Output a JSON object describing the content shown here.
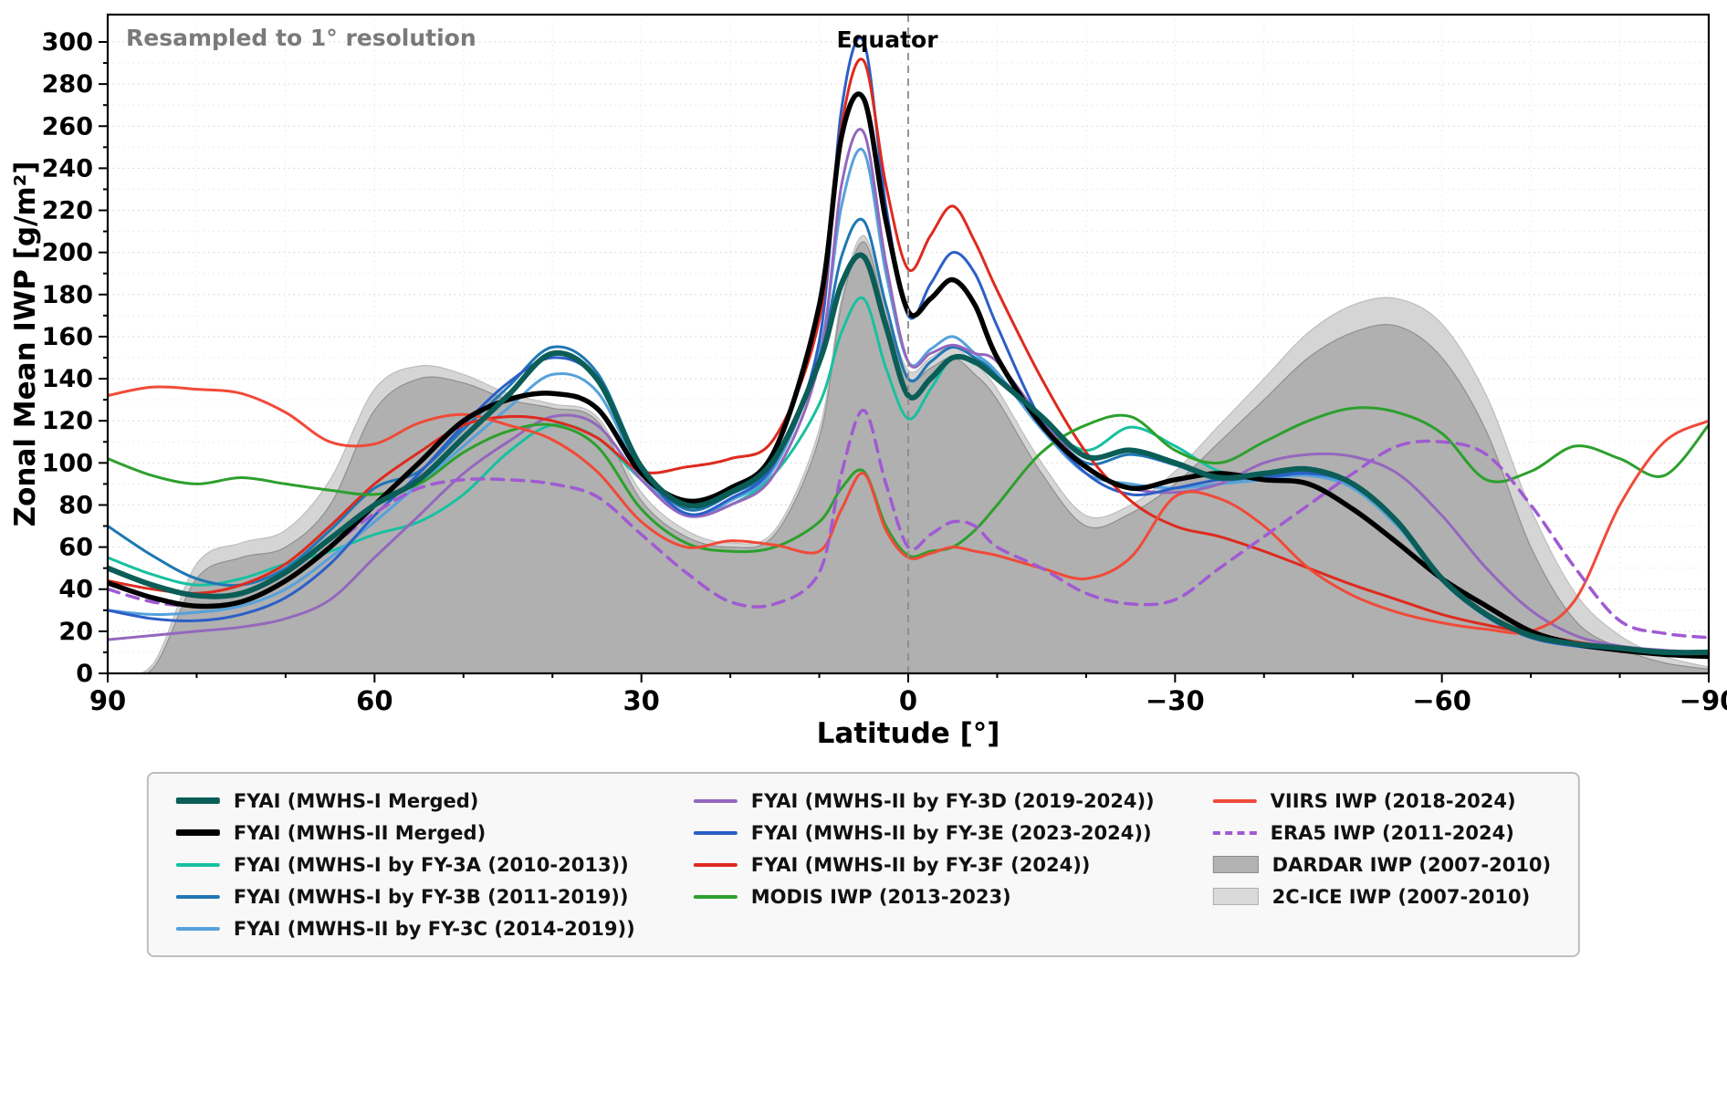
{
  "chart_data": {
    "type": "line",
    "title": "",
    "annotation": "Resampled to 1° resolution",
    "equator_label": "Equator",
    "xlabel": "Latitude [°]",
    "ylabel": "Zonal Mean IWP [g/m²]",
    "xlim": [
      90,
      -90
    ],
    "ylim": [
      0,
      313
    ],
    "x_axis_reversed": true,
    "grid": "dotted",
    "x_ticks": [
      90,
      60,
      30,
      0,
      -30,
      -60,
      -90
    ],
    "x_tick_labels": [
      "90",
      "60",
      "30",
      "0",
      "−30",
      "−60",
      "−90"
    ],
    "y_ticks": [
      0,
      20,
      40,
      60,
      80,
      100,
      120,
      140,
      160,
      180,
      200,
      220,
      240,
      260,
      280,
      300
    ],
    "x": [
      90,
      85,
      80,
      75,
      70,
      65,
      60,
      55,
      50,
      45,
      40,
      35,
      30,
      25,
      20,
      15,
      10,
      7.5,
      5,
      2.5,
      0,
      -2.5,
      -5,
      -7.5,
      -10,
      -15,
      -20,
      -25,
      -30,
      -35,
      -40,
      -45,
      -50,
      -55,
      -60,
      -65,
      -70,
      -75,
      -80,
      -85,
      -90
    ],
    "areas": [
      {
        "name": "2C-ICE IWP (2007-2010)",
        "color": "#d0d0d0",
        "opacity": 0.9,
        "edge": "#bdbdbd",
        "values": [
          0,
          4,
          52,
          62,
          68,
          92,
          135,
          146,
          142,
          133,
          128,
          122,
          86,
          68,
          62,
          68,
          116,
          178,
          208,
          173,
          144,
          150,
          155,
          147,
          135,
          100,
          75,
          80,
          96,
          118,
          140,
          162,
          175,
          178,
          166,
          132,
          78,
          38,
          18,
          8,
          3
        ]
      },
      {
        "name": "DARDAR IWP (2007-2010)",
        "color": "#a6a6a6",
        "opacity": 0.8,
        "edge": "#8f8f8f",
        "values": [
          0,
          2,
          45,
          55,
          60,
          80,
          125,
          140,
          138,
          130,
          126,
          120,
          82,
          65,
          60,
          66,
          112,
          175,
          205,
          170,
          140,
          145,
          150,
          142,
          130,
          95,
          70,
          76,
          90,
          110,
          130,
          150,
          162,
          165,
          150,
          115,
          60,
          25,
          12,
          5,
          2
        ]
      }
    ],
    "series": [
      {
        "name": "FYAI (MWHS-I Merged)",
        "color": "#0b5d57",
        "width": 6,
        "dash": null,
        "values": [
          50,
          42,
          37,
          38,
          48,
          64,
          80,
          92,
          112,
          132,
          152,
          140,
          98,
          80,
          86,
          102,
          148,
          185,
          198,
          165,
          132,
          140,
          150,
          148,
          140,
          122,
          103,
          106,
          100,
          93,
          95,
          97,
          90,
          72,
          45,
          28,
          18,
          14,
          12,
          10,
          10
        ]
      },
      {
        "name": "FYAI (MWHS-II Merged)",
        "color": "#000000",
        "width": 5.5,
        "dash": null,
        "values": [
          43,
          36,
          32,
          34,
          44,
          60,
          80,
          100,
          120,
          130,
          133,
          126,
          95,
          82,
          88,
          106,
          175,
          255,
          273,
          215,
          172,
          178,
          187,
          175,
          150,
          118,
          98,
          88,
          92,
          95,
          92,
          90,
          78,
          62,
          45,
          32,
          20,
          14,
          11,
          9,
          8
        ]
      },
      {
        "name": "FYAI (MWHS-I by FY-3A (2010-2013))",
        "color": "#18c0a0",
        "width": 3,
        "dash": null,
        "values": [
          55,
          47,
          42,
          45,
          52,
          58,
          66,
          72,
          85,
          105,
          118,
          112,
          92,
          76,
          80,
          95,
          128,
          162,
          178,
          145,
          121,
          135,
          150,
          147,
          142,
          120,
          106,
          117,
          108,
          96,
          94,
          96,
          88,
          70,
          44,
          27,
          17,
          13,
          11,
          10,
          10
        ]
      },
      {
        "name": "FYAI (MWHS-I by FY-3B (2011-2019))",
        "color": "#1f77b4",
        "width": 3,
        "dash": null,
        "values": [
          70,
          56,
          45,
          42,
          50,
          68,
          88,
          96,
          116,
          136,
          155,
          143,
          99,
          78,
          85,
          100,
          150,
          198,
          215,
          175,
          140,
          148,
          155,
          150,
          142,
          120,
          100,
          104,
          99,
          92,
          94,
          96,
          89,
          71,
          44,
          27,
          17,
          13,
          11,
          10,
          9
        ]
      },
      {
        "name": "FYAI (MWHS-II by FY-3C (2014-2019))",
        "color": "#55a1dc",
        "width": 3,
        "dash": null,
        "values": [
          30,
          28,
          29,
          32,
          40,
          55,
          72,
          90,
          108,
          126,
          142,
          134,
          95,
          75,
          82,
          98,
          152,
          222,
          248,
          190,
          148,
          154,
          160,
          152,
          143,
          116,
          95,
          90,
          88,
          90,
          92,
          94,
          88,
          70,
          44,
          27,
          17,
          13,
          11,
          10,
          9
        ]
      },
      {
        "name": "FYAI (MWHS-II by FY-3D (2019-2024))",
        "color": "#9467bd",
        "width": 3,
        "dash": null,
        "values": [
          16,
          18,
          20,
          22,
          26,
          35,
          55,
          75,
          95,
          110,
          122,
          118,
          92,
          75,
          80,
          95,
          148,
          232,
          257,
          195,
          148,
          152,
          156,
          152,
          148,
          121,
          98,
          88,
          86,
          90,
          100,
          104,
          103,
          95,
          75,
          50,
          30,
          18,
          13,
          11,
          10
        ]
      },
      {
        "name": "FYAI (MWHS-II by FY-3E (2023-2024))",
        "color": "#2b5fc7",
        "width": 3,
        "dash": null,
        "values": [
          30,
          26,
          25,
          28,
          36,
          52,
          75,
          95,
          118,
          138,
          150,
          140,
          98,
          76,
          83,
          100,
          158,
          268,
          300,
          222,
          170,
          185,
          200,
          190,
          165,
          120,
          95,
          85,
          88,
          92,
          93,
          95,
          90,
          72,
          45,
          27,
          17,
          13,
          11,
          10,
          9
        ]
      },
      {
        "name": "FYAI (MWHS-II by FY-3F (2024))",
        "color": "#de2a1e",
        "width": 3,
        "dash": null,
        "values": [
          44,
          40,
          38,
          42,
          52,
          70,
          90,
          105,
          118,
          122,
          120,
          112,
          96,
          98,
          102,
          112,
          168,
          260,
          291,
          232,
          192,
          208,
          222,
          205,
          182,
          140,
          105,
          82,
          70,
          65,
          58,
          50,
          42,
          35,
          28,
          23,
          19,
          15,
          12,
          10,
          9
        ]
      },
      {
        "name": "MODIS IWP (2013-2023)",
        "color": "#2ca02c",
        "width": 3,
        "dash": null,
        "values": [
          102,
          94,
          90,
          93,
          90,
          87,
          85,
          90,
          105,
          115,
          118,
          108,
          78,
          62,
          58,
          60,
          72,
          88,
          96,
          70,
          56,
          58,
          60,
          68,
          80,
          105,
          118,
          122,
          106,
          100,
          110,
          120,
          126,
          124,
          114,
          92,
          96,
          108,
          102,
          94,
          118
        ]
      },
      {
        "name": "VIIRS IWP (2018-2024)",
        "color": "#f04a38",
        "width": 3,
        "dash": null,
        "values": [
          132,
          136,
          135,
          133,
          124,
          110,
          109,
          119,
          123,
          118,
          111,
          96,
          72,
          60,
          63,
          61,
          58,
          78,
          95,
          68,
          55,
          57,
          60,
          58,
          56,
          50,
          45,
          55,
          84,
          83,
          70,
          50,
          37,
          29,
          24,
          21,
          20,
          35,
          80,
          110,
          120
        ]
      },
      {
        "name": "ERA5 IWP (2011-2024)",
        "color": "#a05ad2",
        "width": 3.5,
        "dash": "13 9",
        "values": [
          40,
          34,
          32,
          34,
          44,
          60,
          76,
          88,
          92,
          92,
          90,
          84,
          66,
          48,
          34,
          33,
          48,
          95,
          125,
          90,
          60,
          66,
          72,
          70,
          60,
          50,
          38,
          33,
          35,
          50,
          65,
          80,
          95,
          108,
          110,
          104,
          80,
          50,
          25,
          19,
          17
        ]
      }
    ]
  },
  "legend": {
    "columns": [
      [
        {
          "swatch": "line-thick",
          "color": "#0b5d57",
          "label": "FYAI (MWHS-I Merged)"
        },
        {
          "swatch": "line-thick",
          "color": "#000000",
          "label": "FYAI (MWHS-II Merged)"
        },
        {
          "swatch": "line",
          "color": "#18c0a0",
          "label": "FYAI (MWHS-I by FY-3A (2010-2013))"
        },
        {
          "swatch": "line",
          "color": "#1f77b4",
          "label": "FYAI (MWHS-I by FY-3B (2011-2019))"
        },
        {
          "swatch": "line",
          "color": "#55a1dc",
          "label": "FYAI (MWHS-II by FY-3C (2014-2019))"
        }
      ],
      [
        {
          "swatch": "line",
          "color": "#9467bd",
          "label": "FYAI (MWHS-II by FY-3D (2019-2024))"
        },
        {
          "swatch": "line",
          "color": "#2b5fc7",
          "label": "FYAI (MWHS-II by FY-3E (2023-2024))"
        },
        {
          "swatch": "line",
          "color": "#de2a1e",
          "label": "FYAI (MWHS-II by FY-3F (2024))"
        },
        {
          "swatch": "line",
          "color": "#2ca02c",
          "label": "MODIS IWP (2013-2023)"
        }
      ],
      [
        {
          "swatch": "line",
          "color": "#f04a38",
          "label": "VIIRS IWP (2018-2024)"
        },
        {
          "swatch": "dashed",
          "color": "#a05ad2",
          "label": "ERA5 IWP (2011-2024)"
        },
        {
          "swatch": "patch",
          "color": "#b3b3b3",
          "edge": "#8c8c8c",
          "label": "DARDAR IWP (2007-2010)"
        },
        {
          "swatch": "patch",
          "color": "#dadada",
          "edge": "#b0b0b0",
          "label": "2C-ICE IWP (2007-2010)"
        }
      ]
    ]
  }
}
